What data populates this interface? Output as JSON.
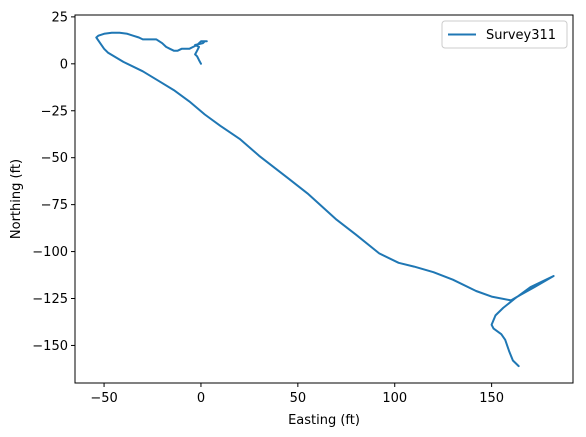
{
  "chart_data": {
    "type": "line",
    "title": "",
    "xlabel": "Easting (ft)",
    "ylabel": "Northing (ft)",
    "xlim": [
      -65,
      192
    ],
    "ylim": [
      -170,
      26
    ],
    "xticks": [
      -50,
      0,
      50,
      100,
      150
    ],
    "yticks": [
      25,
      0,
      -25,
      -50,
      -75,
      -100,
      -125,
      -150
    ],
    "xtick_labels": [
      "−50",
      "0",
      "50",
      "100",
      "150"
    ],
    "ytick_labels": [
      "25",
      "0",
      "−25",
      "−50",
      "−75",
      "−100",
      "−125",
      "−150"
    ],
    "grid": false,
    "legend": {
      "placement": "top-right",
      "entries": [
        "Survey311"
      ]
    },
    "series": [
      {
        "name": "Survey311",
        "color": "#1f77b4",
        "points": [
          [
            0,
            0
          ],
          [
            -1,
            2
          ],
          [
            -2,
            4
          ],
          [
            -3,
            5
          ],
          [
            -2,
            7
          ],
          [
            -1,
            9
          ],
          [
            -3,
            10
          ],
          [
            1,
            11
          ],
          [
            2,
            12
          ],
          [
            3,
            12
          ],
          [
            0,
            12
          ],
          [
            -2,
            10
          ],
          [
            -4,
            9
          ],
          [
            -6,
            8
          ],
          [
            -8,
            8
          ],
          [
            -10,
            8
          ],
          [
            -12,
            7
          ],
          [
            -14,
            7
          ],
          [
            -16,
            8
          ],
          [
            -18,
            9
          ],
          [
            -20,
            11
          ],
          [
            -23,
            13
          ],
          [
            -26,
            13
          ],
          [
            -30,
            13
          ],
          [
            -32,
            14
          ],
          [
            -35,
            15
          ],
          [
            -38,
            16
          ],
          [
            -42,
            16.5
          ],
          [
            -46,
            16.5
          ],
          [
            -50,
            16
          ],
          [
            -53,
            15
          ],
          [
            -54,
            14
          ],
          [
            -52,
            11
          ],
          [
            -50,
            8
          ],
          [
            -48,
            6
          ],
          [
            -40,
            1
          ],
          [
            -30,
            -4
          ],
          [
            -22,
            -9
          ],
          [
            -14,
            -14
          ],
          [
            -6,
            -20
          ],
          [
            2,
            -27
          ],
          [
            10,
            -33
          ],
          [
            20,
            -40
          ],
          [
            30,
            -49
          ],
          [
            45,
            -61
          ],
          [
            55,
            -69
          ],
          [
            70,
            -83
          ],
          [
            80,
            -91
          ],
          [
            92,
            -101
          ],
          [
            102,
            -106
          ],
          [
            110,
            -108
          ],
          [
            120,
            -111
          ],
          [
            130,
            -115
          ],
          [
            142,
            -121
          ],
          [
            150,
            -124
          ],
          [
            160,
            -126
          ],
          [
            165,
            -123
          ],
          [
            172,
            -119
          ],
          [
            177,
            -116
          ],
          [
            182,
            -113
          ],
          [
            170,
            -119
          ],
          [
            162,
            -125
          ],
          [
            156,
            -130
          ],
          [
            152,
            -134
          ],
          [
            150,
            -139
          ],
          [
            151,
            -141
          ],
          [
            155,
            -144
          ],
          [
            157,
            -147
          ],
          [
            159,
            -153
          ],
          [
            161,
            -158
          ],
          [
            164,
            -161
          ]
        ]
      }
    ]
  }
}
